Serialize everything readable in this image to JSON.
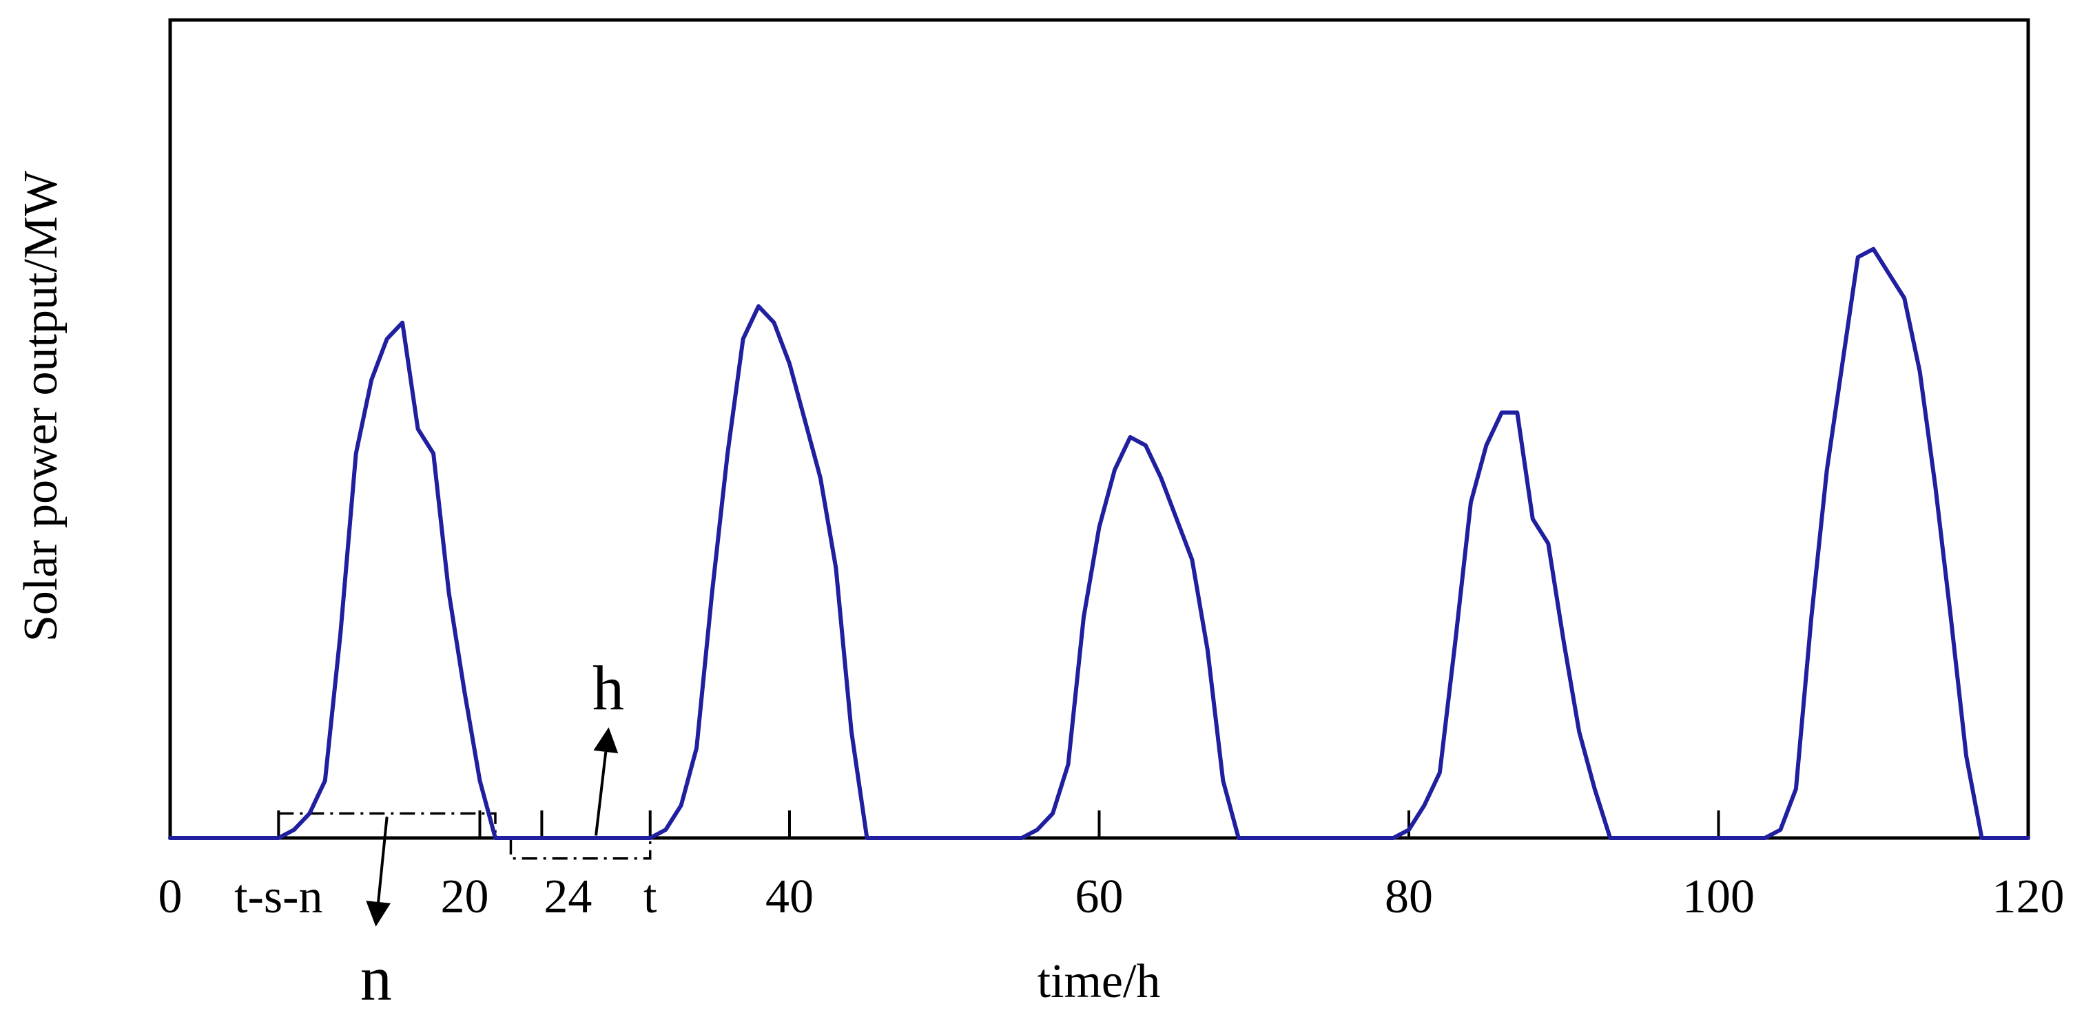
{
  "chart_data": {
    "type": "line",
    "title": "",
    "xlabel": "time/h",
    "ylabel": "Solar power output/MW",
    "xlim": [
      0,
      120
    ],
    "ylim": [
      0,
      100
    ],
    "grid": false,
    "legend": "none",
    "x_ticks": [
      {
        "value": 0,
        "label": "0"
      },
      {
        "value": 7,
        "label": "t-s-n"
      },
      {
        "value": 20,
        "label": "20"
      },
      {
        "value": 24,
        "label": "24"
      },
      {
        "value": 31,
        "label": "t"
      },
      {
        "value": 40,
        "label": "40"
      },
      {
        "value": 60,
        "label": "60"
      },
      {
        "value": 80,
        "label": "80"
      },
      {
        "value": 100,
        "label": "100"
      },
      {
        "value": 120,
        "label": "120"
      }
    ],
    "series": [
      {
        "name": "Solar power output",
        "color": "#1f1fa0",
        "x": [
          0,
          7,
          8,
          9,
          10,
          11,
          12,
          13,
          14,
          15,
          16,
          17,
          18,
          19,
          20,
          21,
          22,
          31,
          32,
          33,
          34,
          35,
          36,
          37,
          38,
          39,
          40,
          41,
          42,
          43,
          44,
          45,
          55,
          56,
          57,
          58,
          59,
          60,
          61,
          62,
          63,
          64,
          65,
          66,
          67,
          68,
          69,
          79,
          80,
          81,
          82,
          83,
          84,
          85,
          86,
          87,
          88,
          89,
          90,
          91,
          92,
          93,
          103,
          104,
          105,
          106,
          107,
          108,
          109,
          110,
          111,
          112,
          113,
          114,
          115,
          116,
          117,
          120
        ],
        "values": [
          0,
          0,
          1,
          3,
          7,
          25,
          47,
          56,
          61,
          63,
          50,
          47,
          30,
          18,
          7,
          0,
          0,
          0,
          1,
          4,
          11,
          30,
          47,
          61,
          65,
          63,
          58,
          51,
          44,
          33,
          13,
          0,
          0,
          1,
          3,
          9,
          27,
          38,
          45,
          49,
          48,
          44,
          39,
          34,
          23,
          7,
          0,
          0,
          1,
          4,
          8,
          24,
          41,
          48,
          52,
          52,
          39,
          36,
          24,
          13,
          6,
          0,
          0,
          1,
          6,
          27,
          45,
          58,
          71,
          72,
          69,
          66,
          57,
          43,
          27,
          10,
          0,
          0
        ]
      }
    ],
    "annotations": [
      {
        "text": "h",
        "kind": "arrow-up",
        "x_from": 27.5,
        "y_from": 0.3,
        "x_to": 28.3,
        "y_to": 13.2
      },
      {
        "text": "n",
        "kind": "arrow-down",
        "x_from": 14,
        "y_from": 2.6,
        "x_to": 13.3,
        "y_to": -10.5
      },
      {
        "kind": "box",
        "x0": 7,
        "x1": 21,
        "y0": 0,
        "y1": 3,
        "style": "dash-dot"
      },
      {
        "kind": "box",
        "x0": 22,
        "x1": 31,
        "y0": -2.5,
        "y1": 0,
        "style": "dash-dot"
      }
    ]
  }
}
